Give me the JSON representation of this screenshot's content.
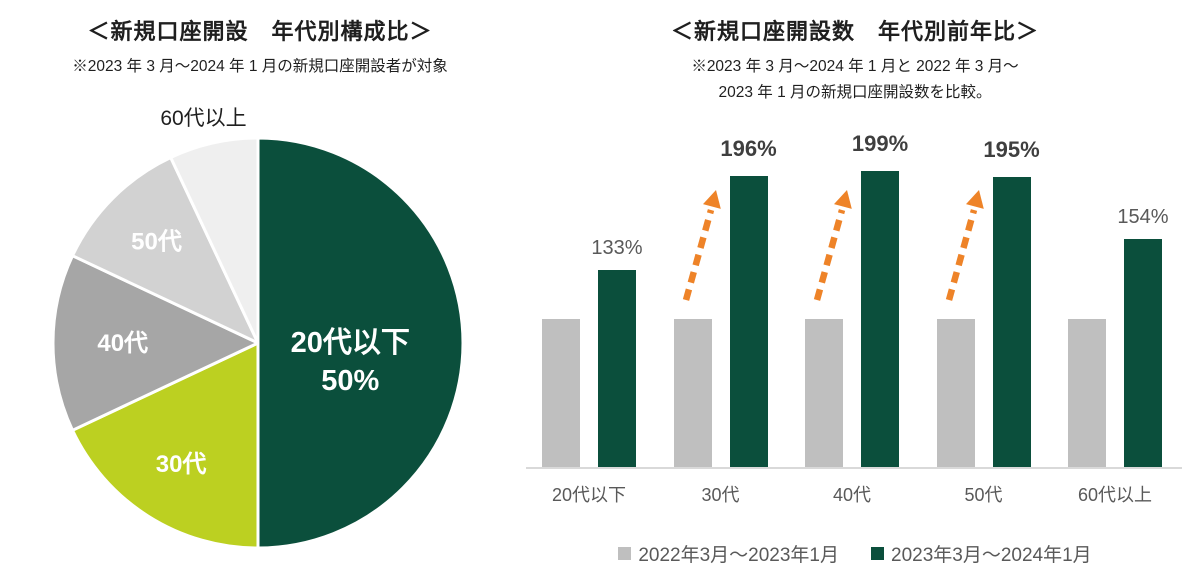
{
  "chart_data": [
    {
      "type": "pie",
      "title": "＜新規口座開設　年代別構成比＞",
      "subtitle": "※2023 年 3 月～2024 年 1 月の新規口座開設者が対象",
      "slices": [
        {
          "label": "20代以下",
          "value_pct": 50,
          "shown_value": "50%",
          "color": "#0B4F3C"
        },
        {
          "label": "30代",
          "value_pct": 18,
          "color": "#BCD021"
        },
        {
          "label": "40代",
          "value_pct": 14,
          "color": "#A6A6A6"
        },
        {
          "label": "50代",
          "value_pct": 11,
          "color": "#D2D2D2"
        },
        {
          "label": "60代以上",
          "value_pct": 7,
          "color": "#EFEFEF"
        }
      ]
    },
    {
      "type": "bar",
      "title": "＜新規口座開設数　年代別前年比＞",
      "subtitle_lines": [
        "※2023 年 3 月～2024 年 1 月と 2022 年 3 月～",
        "2023 年 1 月の新規口座開設数を比較。"
      ],
      "categories": [
        "20代以下",
        "30代",
        "40代",
        "50代",
        "60代以上"
      ],
      "series": [
        {
          "name": "2022年3月～2023年1月",
          "color": "#BFBFBF",
          "values": [
            100,
            100,
            100,
            100,
            100
          ]
        },
        {
          "name": "2023年3月～2024年1月",
          "color": "#0B4F3C",
          "values": [
            133,
            196,
            199,
            195,
            154
          ]
        }
      ],
      "value_labels": [
        "133%",
        "196%",
        "199%",
        "195%",
        "154%"
      ],
      "emphasized_labels": [
        false,
        true,
        true,
        true,
        false
      ],
      "arrow_category_indices": [
        1,
        2,
        3
      ],
      "arrow_color": "#EE8328",
      "axis_line_color": "#D9D9D9",
      "legend_position": "bottom"
    }
  ]
}
